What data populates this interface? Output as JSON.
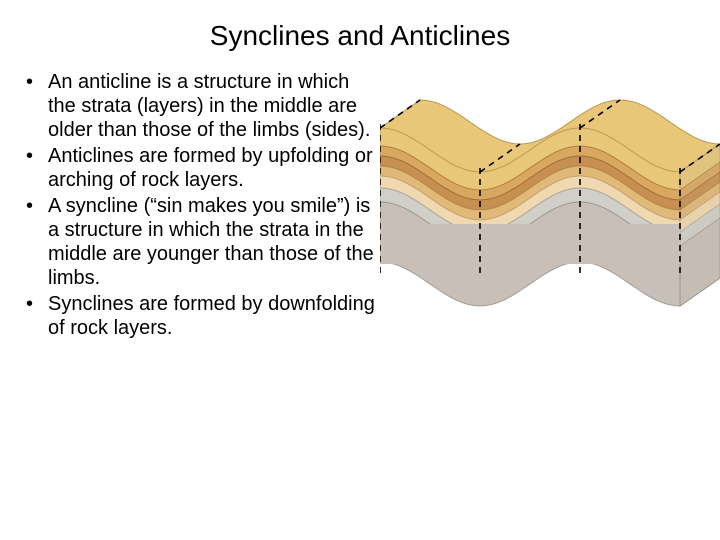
{
  "title": "Synclines and Anticlines",
  "bullets": [
    "An anticline is a structure in which the strata (layers) in the middle are older than those of the limbs (sides).",
    "Anticlines are formed by upfolding or arching of rock layers.",
    "A syncline (“sin makes you smile”) is a structure in which the strata in the middle are younger than those of the limbs.",
    "Synclines are formed by downfolding of rock layers."
  ],
  "diagram": {
    "type": "infographic",
    "description": "3D block diagram of folded rock strata showing anticline (upfold) and syncline (downfold)",
    "layers_top_to_bottom": [
      {
        "name": "surface",
        "fill": "#e8c878",
        "stroke": "#b89850",
        "thickness": 18
      },
      {
        "name": "layer1",
        "fill": "#d8a860",
        "stroke": "#a87838",
        "thickness": 10
      },
      {
        "name": "layer2",
        "fill": "#c89050",
        "stroke": "#986830",
        "thickness": 10
      },
      {
        "name": "layer3",
        "fill": "#e0b878",
        "stroke": "#b08848",
        "thickness": 10
      },
      {
        "name": "layer4",
        "fill": "#f0d8b0",
        "stroke": "#c0a070",
        "thickness": 12
      },
      {
        "name": "layer5",
        "fill": "#d0d0c8",
        "stroke": "#a0a098",
        "thickness": 14
      },
      {
        "name": "basement",
        "fill": "#c8c0b8",
        "stroke": "#989088",
        "thickness": 60
      }
    ],
    "fold_axes_dash": "6,5",
    "fold_axis_color": "#000000",
    "background": "#ffffff",
    "side_shade": "#b8b0a0",
    "wave_amplitude": 22,
    "wave_period": 100
  }
}
